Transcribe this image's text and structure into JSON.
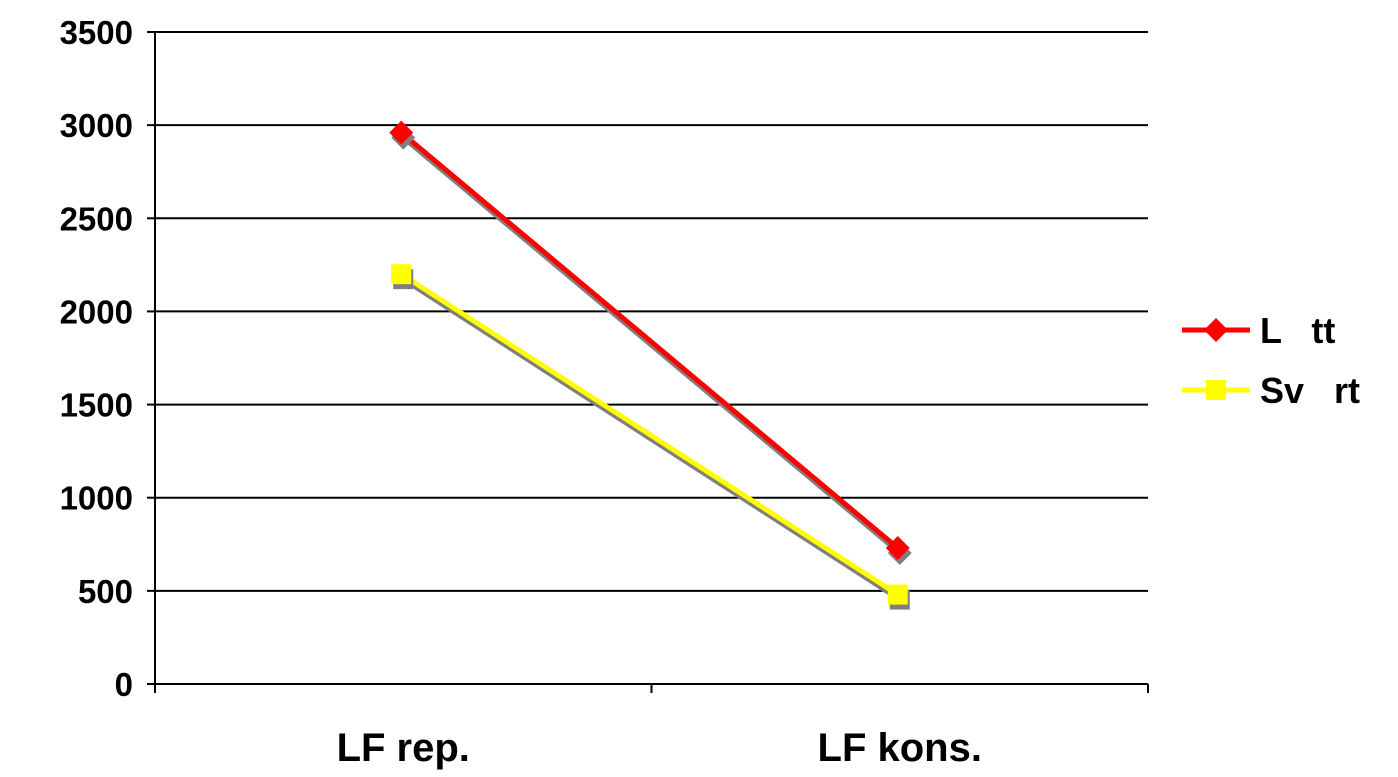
{
  "chart_data": {
    "type": "line",
    "categories": [
      "LF rep.",
      "LF kons."
    ],
    "series": [
      {
        "name": "L   tt",
        "values": [
          2960,
          730
        ],
        "color": "#ff0000",
        "marker": "diamond"
      },
      {
        "name": "Sv   rt",
        "values": [
          2200,
          480
        ],
        "color": "#ffff00",
        "marker": "square"
      }
    ],
    "title": "",
    "xlabel": "",
    "ylabel": "",
    "ylim": [
      0,
      3500
    ],
    "yticks": [
      "0",
      "500",
      "1000",
      "1500",
      "2000",
      "2500",
      "3000",
      "3500"
    ],
    "grid": true,
    "legend": "right"
  }
}
